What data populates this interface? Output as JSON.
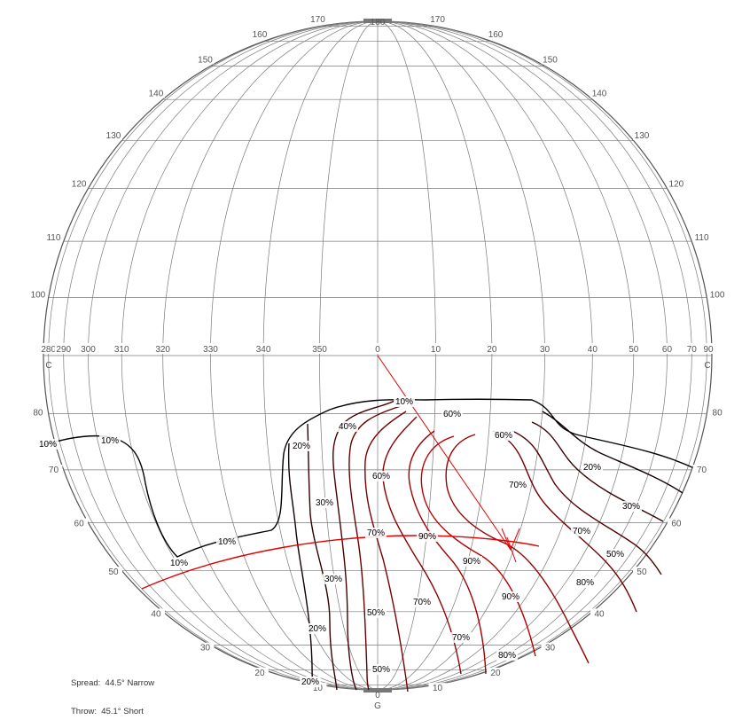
{
  "chart_data": {
    "type": "polar-isocandela-diagram",
    "azimuth_labels_horizontal": [
      "270",
      "280",
      "290",
      "300",
      "310",
      "320",
      "330",
      "340",
      "350",
      "0",
      "10",
      "20",
      "30",
      "40",
      "50",
      "60",
      "70",
      "80",
      "90"
    ],
    "side_label_left": "C",
    "side_label_right": "C",
    "bottom_label_gamma": "G",
    "gamma_labels_bottom": [
      "0",
      "10",
      "20",
      "30",
      "40",
      "50",
      "60",
      "70",
      "80"
    ],
    "gamma_labels_top": [
      "180",
      "170",
      "160",
      "150",
      "140",
      "130",
      "120",
      "110",
      "100"
    ],
    "gamma_rim_labels": {
      "left_upper": [
        "170",
        "160",
        "150",
        "140",
        "130",
        "120",
        "110",
        "100"
      ],
      "right_upper": [
        "170",
        "160",
        "150",
        "140",
        "130",
        "120",
        "110",
        "100"
      ],
      "left_lower": [
        "80",
        "70",
        "60",
        "50",
        "40",
        "30",
        "20",
        "10"
      ],
      "right_lower": [
        "80",
        "70",
        "60",
        "50",
        "40",
        "30",
        "20",
        "10"
      ]
    },
    "contour_levels": [
      "10%",
      "20%",
      "30%",
      "40%",
      "50%",
      "60%",
      "70%",
      "80%",
      "90%"
    ],
    "contour_labels": [
      {
        "text": "10%"
      },
      {
        "text": "10%"
      },
      {
        "text": "10%"
      },
      {
        "text": "10%"
      },
      {
        "text": "10%"
      },
      {
        "text": "20%"
      },
      {
        "text": "20%"
      },
      {
        "text": "20%"
      },
      {
        "text": "20%"
      },
      {
        "text": "30%"
      },
      {
        "text": "30%"
      },
      {
        "text": "30%"
      },
      {
        "text": "40%"
      },
      {
        "text": "50%"
      },
      {
        "text": "50%"
      },
      {
        "text": "50%"
      },
      {
        "text": "60%"
      },
      {
        "text": "60%"
      },
      {
        "text": "60%"
      },
      {
        "text": "70%"
      },
      {
        "text": "70%"
      },
      {
        "text": "70%"
      },
      {
        "text": "70%"
      },
      {
        "text": "70%"
      },
      {
        "text": "80%"
      },
      {
        "text": "80%"
      },
      {
        "text": "90%"
      },
      {
        "text": "90%"
      },
      {
        "text": "90%"
      }
    ],
    "colors": {
      "grid": "#7a7a7a",
      "contour_low": "#000000",
      "contour_high": "#cc0000",
      "guide": "#e00000"
    }
  },
  "info": {
    "spread": "Spread:  44.5° Narrow",
    "throw": "Throw:  45.1° Short"
  }
}
